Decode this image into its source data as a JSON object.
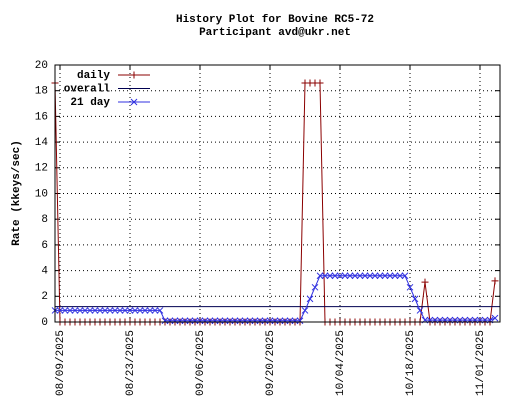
{
  "chart_data": {
    "type": "line",
    "title": "History Plot for Bovine RC5-72",
    "subtitle": "Participant avd@ukr.net",
    "y_label": "Rate (kkeys/sec)",
    "x": [
      "2025-08-08",
      "2025-08-09",
      "2025-08-10",
      "2025-08-11",
      "2025-08-12",
      "2025-08-13",
      "2025-08-14",
      "2025-08-15",
      "2025-08-16",
      "2025-08-17",
      "2025-08-18",
      "2025-08-19",
      "2025-08-20",
      "2025-08-21",
      "2025-08-22",
      "2025-08-23",
      "2025-08-24",
      "2025-08-25",
      "2025-08-26",
      "2025-08-27",
      "2025-08-28",
      "2025-08-29",
      "2025-08-30",
      "2025-08-31",
      "2025-09-01",
      "2025-09-02",
      "2025-09-03",
      "2025-09-04",
      "2025-09-05",
      "2025-09-06",
      "2025-09-07",
      "2025-09-08",
      "2025-09-09",
      "2025-09-10",
      "2025-09-11",
      "2025-09-12",
      "2025-09-13",
      "2025-09-14",
      "2025-09-15",
      "2025-09-16",
      "2025-09-17",
      "2025-09-18",
      "2025-09-19",
      "2025-09-20",
      "2025-09-21",
      "2025-09-22",
      "2025-09-23",
      "2025-09-24",
      "2025-09-25",
      "2025-09-26",
      "2025-09-27",
      "2025-09-28",
      "2025-09-29",
      "2025-09-30",
      "2025-10-01",
      "2025-10-02",
      "2025-10-03",
      "2025-10-04",
      "2025-10-05",
      "2025-10-06",
      "2025-10-07",
      "2025-10-08",
      "2025-10-09",
      "2025-10-10",
      "2025-10-11",
      "2025-10-12",
      "2025-10-13",
      "2025-10-14",
      "2025-10-15",
      "2025-10-16",
      "2025-10-17",
      "2025-10-18",
      "2025-10-19",
      "2025-10-20",
      "2025-10-21",
      "2025-10-22",
      "2025-10-23",
      "2025-10-24",
      "2025-10-25",
      "2025-10-26",
      "2025-10-27",
      "2025-10-28",
      "2025-10-29",
      "2025-10-30",
      "2025-10-31",
      "2025-11-01",
      "2025-11-02",
      "2025-11-03",
      "2025-11-04",
      "2025-11-05"
    ],
    "series": [
      {
        "name": "daily",
        "color": "#8b0000",
        "marker": "plus",
        "values": [
          18.6,
          0,
          0,
          0,
          0,
          0,
          0,
          0,
          0,
          0,
          0,
          0,
          0,
          0,
          0,
          0,
          0,
          0,
          0,
          0,
          0,
          0,
          0,
          0,
          0,
          0,
          0,
          0,
          0,
          0,
          0,
          0,
          0,
          0,
          0,
          0,
          0,
          0,
          0,
          0,
          0,
          0,
          0,
          0,
          0,
          0,
          0,
          0,
          0,
          0,
          18.6,
          18.6,
          18.6,
          18.6,
          0,
          0,
          0,
          0,
          0,
          0,
          0,
          0,
          0,
          0,
          0,
          0,
          0,
          0,
          0,
          0,
          0,
          0,
          0,
          0,
          3.1,
          0,
          0,
          0,
          0,
          0,
          0,
          0,
          0,
          0,
          0,
          0,
          0,
          0,
          3.2,
          null
        ]
      },
      {
        "name": "overall",
        "color": "#000050",
        "value": 1.2
      },
      {
        "name": "21 day",
        "color": "#3030e0",
        "marker": "cross",
        "values": [
          0.9,
          0.9,
          0.9,
          0.9,
          0.9,
          0.9,
          0.9,
          0.9,
          0.9,
          0.9,
          0.9,
          0.9,
          0.9,
          0.9,
          0.9,
          0.9,
          0.9,
          0.9,
          0.9,
          0.9,
          0.9,
          0.9,
          0.1,
          0.1,
          0.1,
          0.1,
          0.1,
          0.1,
          0.1,
          0.1,
          0.1,
          0.1,
          0.1,
          0.1,
          0.1,
          0.1,
          0.1,
          0.1,
          0.1,
          0.1,
          0.1,
          0.1,
          0.1,
          0.1,
          0.1,
          0.1,
          0.1,
          0.1,
          0.1,
          0.1,
          0.9,
          1.8,
          2.7,
          3.6,
          3.6,
          3.6,
          3.6,
          3.6,
          3.6,
          3.6,
          3.6,
          3.6,
          3.6,
          3.6,
          3.6,
          3.6,
          3.6,
          3.6,
          3.6,
          3.6,
          3.6,
          2.7,
          1.8,
          0.9,
          0.15,
          0.15,
          0.15,
          0.15,
          0.15,
          0.15,
          0.15,
          0.15,
          0.15,
          0.15,
          0.15,
          0.15,
          0.15,
          0.15,
          0.3,
          null
        ]
      }
    ],
    "xlim": [
      "2025-08-08",
      "2025-11-05"
    ],
    "xticks": [
      {
        "value": "2025-08-09",
        "label": "08/09/2025"
      },
      {
        "value": "2025-08-23",
        "label": "08/23/2025"
      },
      {
        "value": "2025-09-06",
        "label": "09/06/2025"
      },
      {
        "value": "2025-09-20",
        "label": "09/20/2025"
      },
      {
        "value": "2025-10-04",
        "label": "10/04/2025"
      },
      {
        "value": "2025-10-18",
        "label": "10/18/2025"
      },
      {
        "value": "2025-11-01",
        "label": "11/01/2025"
      }
    ],
    "ylim": [
      0,
      20
    ],
    "yticks": [
      0,
      2,
      4,
      6,
      8,
      10,
      12,
      14,
      16,
      18,
      20
    ],
    "grid": true,
    "legend": "top-left"
  }
}
